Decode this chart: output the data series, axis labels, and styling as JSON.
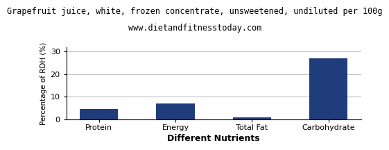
{
  "title": "Grapefruit juice, white, frozen concentrate, unsweetened, undiluted per 100g",
  "subtitle": "www.dietandfitnesstoday.com",
  "xlabel": "Different Nutrients",
  "ylabel": "Percentage of RDH (%)",
  "categories": [
    "Protein",
    "Energy",
    "Total Fat",
    "Carbohydrate"
  ],
  "values": [
    4.5,
    7.0,
    1.0,
    27.0
  ],
  "bar_color": "#1f3d7a",
  "ylim": [
    0,
    32
  ],
  "yticks": [
    0,
    10,
    20,
    30
  ],
  "grid_color": "#c0c0c0",
  "background_color": "#ffffff",
  "title_fontsize": 8.5,
  "subtitle_fontsize": 8.5,
  "xlabel_fontsize": 9,
  "ylabel_fontsize": 7.5,
  "tick_fontsize": 8
}
